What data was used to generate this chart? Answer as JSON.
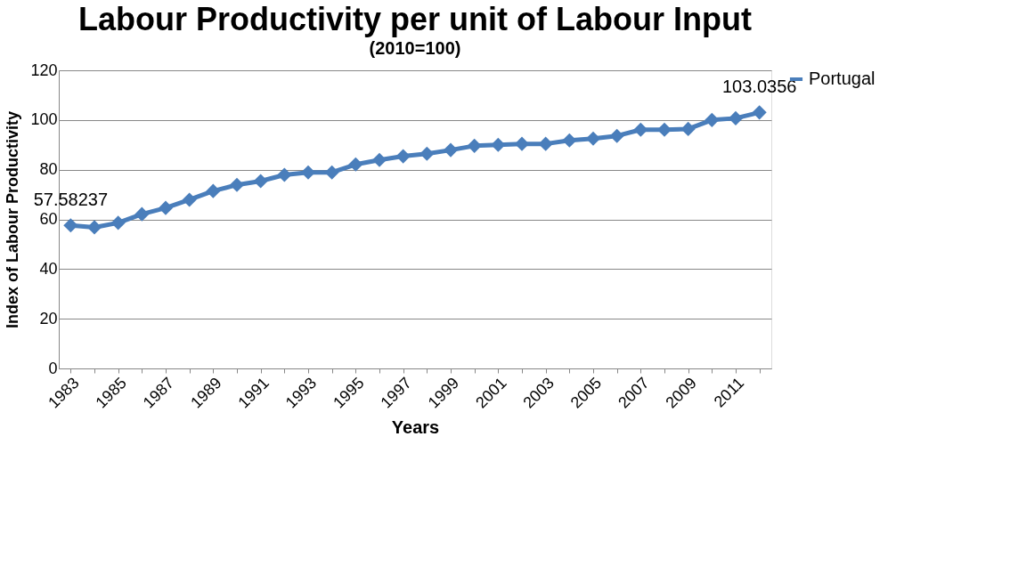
{
  "chart_data": {
    "type": "line",
    "title": "Labour Productivity per unit of Labour Input",
    "subtitle": "(2010=100)",
    "xlabel": "Years",
    "ylabel": "Index of Labour Productivity",
    "categories": [
      "1983",
      null,
      "1985",
      null,
      "1987",
      null,
      "1989",
      null,
      "1991",
      null,
      "1993",
      null,
      "1995",
      null,
      "1997",
      null,
      "1999",
      null,
      "2001",
      null,
      "2003",
      null,
      "2005",
      null,
      "2007",
      null,
      "2009",
      null,
      "2011",
      null
    ],
    "series": [
      {
        "name": "Portugal",
        "color": "#4a7ebb",
        "values": [
          57.58237,
          56.8,
          58.6,
          62.1,
          64.6,
          67.9,
          71.4,
          73.9,
          75.4,
          77.9,
          78.9,
          78.9,
          82.1,
          83.9,
          85.4,
          86.4,
          87.9,
          89.6,
          90.0,
          90.4,
          90.4,
          91.8,
          92.5,
          93.6,
          96.1,
          96.1,
          96.4,
          100.0,
          100.7,
          103.0356
        ],
        "value_labels": [
          "57.58237",
          null,
          null,
          null,
          null,
          null,
          null,
          null,
          null,
          null,
          null,
          null,
          null,
          null,
          null,
          null,
          null,
          null,
          null,
          null,
          null,
          null,
          null,
          null,
          null,
          null,
          null,
          null,
          null,
          "103.0356"
        ]
      }
    ],
    "ylim": [
      0,
      120
    ],
    "yticks": [
      0,
      20,
      40,
      60,
      80,
      100,
      120
    ],
    "grid": "y",
    "legend": "right",
    "marker": "diamond",
    "line_style": "solid"
  }
}
